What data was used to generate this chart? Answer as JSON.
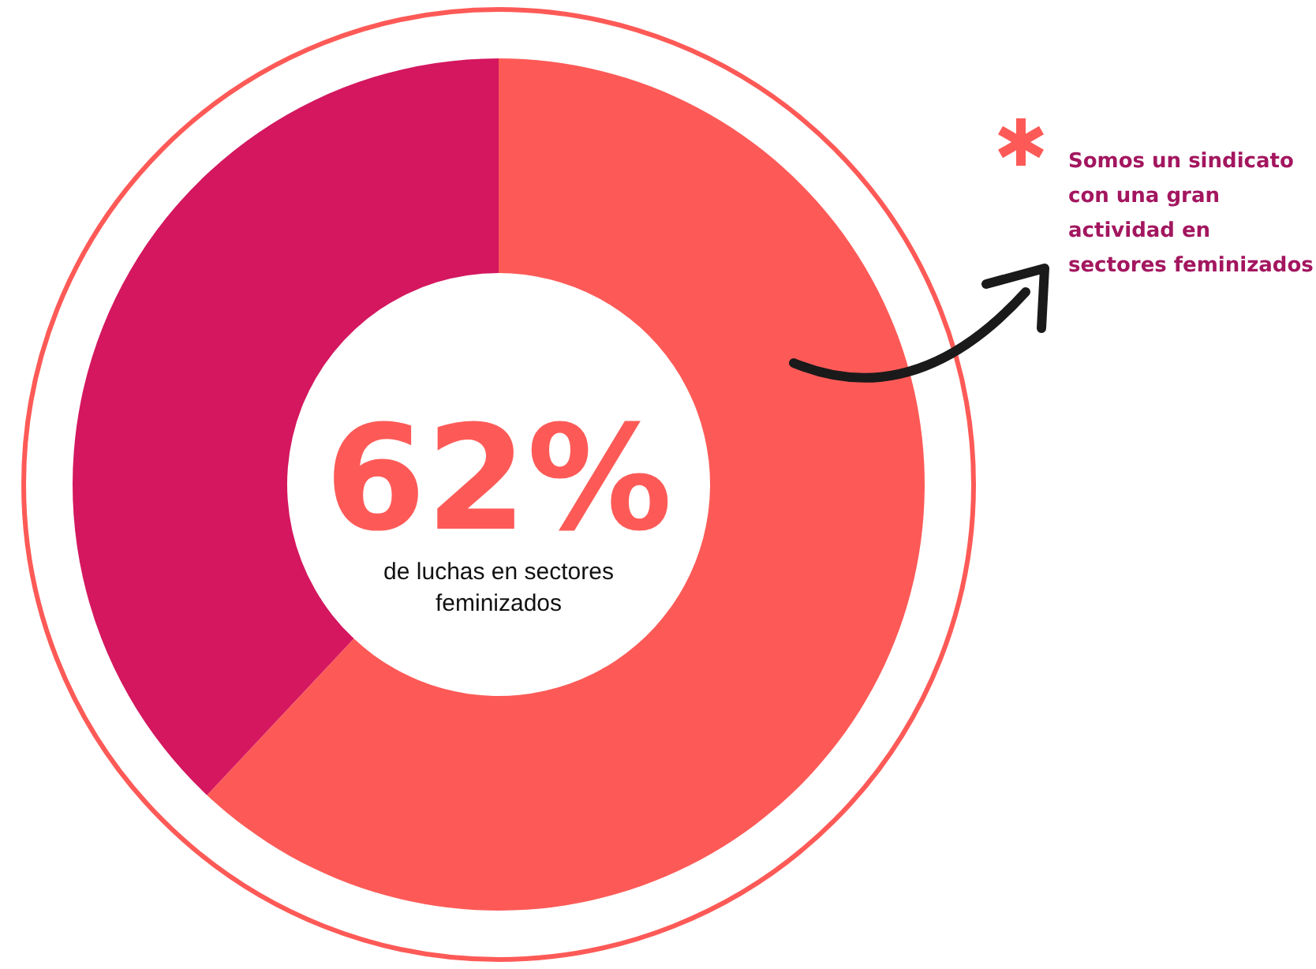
{
  "chart_data": {
    "type": "donut",
    "categories": [
      "de luchas en sectores feminizados",
      null
    ],
    "values": [
      62,
      38
    ],
    "colors": [
      "#fd5a57",
      "#d4175f"
    ],
    "value_labels": [
      "62%",
      null
    ],
    "annotations": [
      "Somos un sindicato con una gran actividad en sectores feminizados"
    ]
  }
}
